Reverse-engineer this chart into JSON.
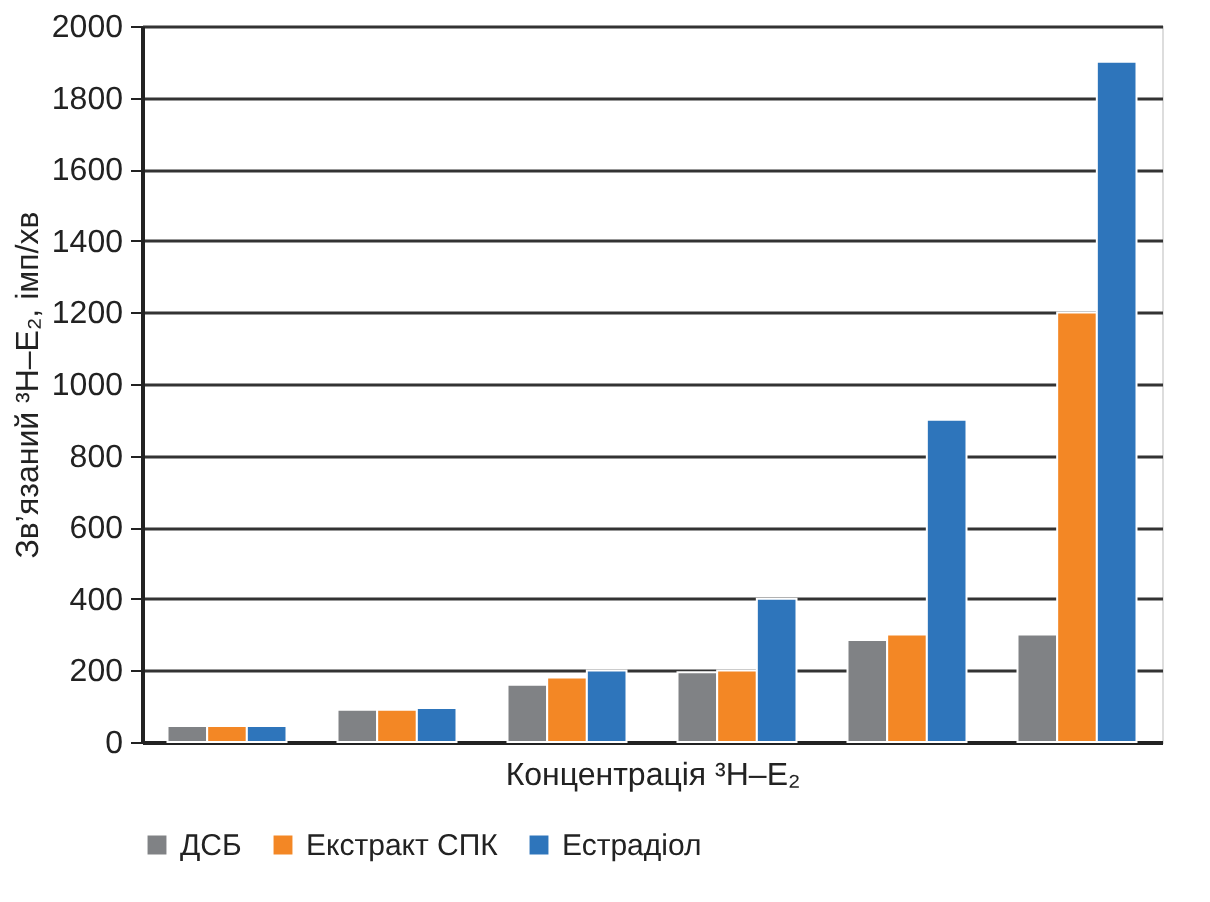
{
  "chart_data": {
    "type": "bar",
    "ylabel": "Зв’язаний ³H–E₂, імп/хв",
    "xlabel": "Концентрація ³H–E₂",
    "categories": [
      null,
      null,
      null,
      null,
      null,
      null
    ],
    "series": [
      {
        "name": "ДСБ",
        "color": "#808285",
        "values": [
          45,
          90,
          160,
          195,
          285,
          300
        ]
      },
      {
        "name": "Екстракт СПК",
        "color": "#f38725",
        "values": [
          45,
          90,
          180,
          200,
          300,
          1200
        ]
      },
      {
        "name": "Естрадіол",
        "color": "#2e75bb",
        "values": [
          45,
          95,
          200,
          400,
          900,
          1900
        ]
      }
    ],
    "ylim": [
      0,
      2000
    ],
    "yticks": [
      0,
      200,
      400,
      600,
      800,
      1000,
      1200,
      1400,
      1600,
      1800,
      2000
    ],
    "grid": "y",
    "legend": "bottom left",
    "tick_labels": "y"
  }
}
